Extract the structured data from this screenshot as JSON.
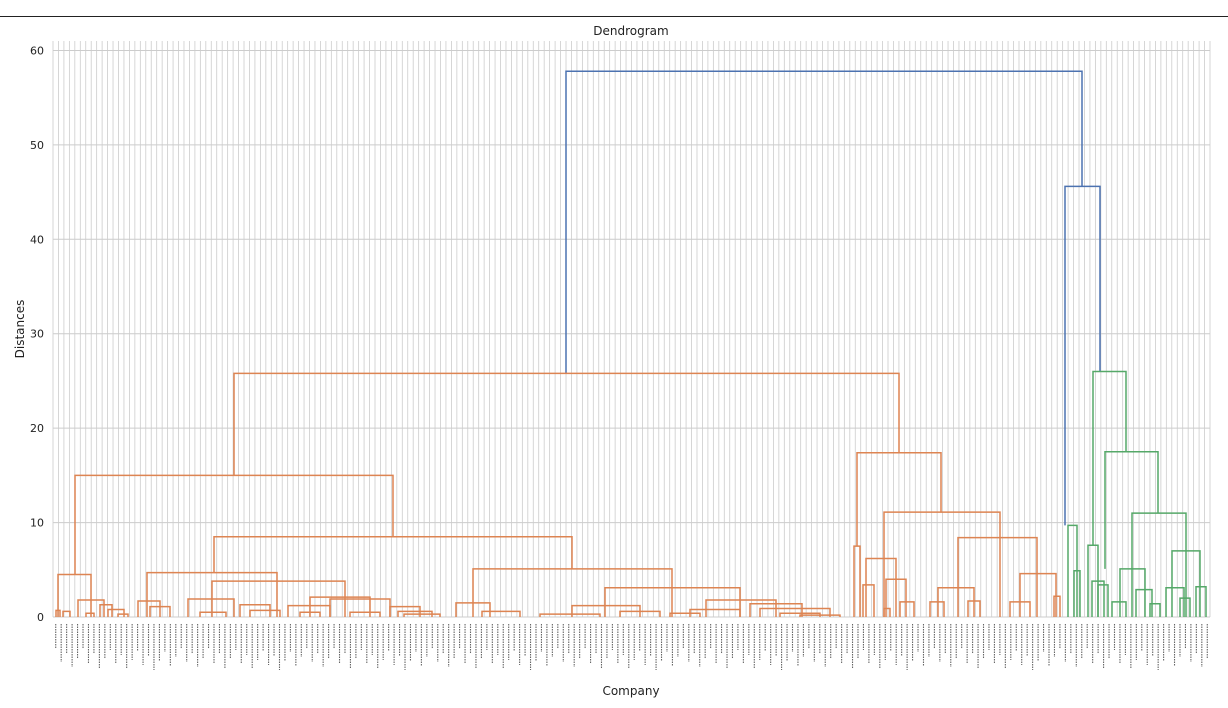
{
  "chart_data": {
    "type": "dendrogram",
    "title": "Dendrogram",
    "xlabel": "Company",
    "ylabel": "Distances",
    "ylim": [
      0,
      61
    ],
    "yticks": [
      0,
      10,
      20,
      30,
      40,
      50,
      60
    ],
    "grid": true,
    "colors": {
      "cluster_1": "#dd8452",
      "cluster_2": "#55a868",
      "above_threshold": "#4c72b0",
      "grid": "#cccccc"
    },
    "merges": [
      {
        "color": "above_threshold",
        "height": 57.8,
        "children": [
          {
            "color": "cluster_1",
            "height": 25.8,
            "children": [
              {
                "color": "cluster_1",
                "height": 15.0,
                "children": [
                  {
                    "color": "cluster_1",
                    "height": 4.5,
                    "children": []
                  },
                  {
                    "color": "cluster_1",
                    "height": 8.5,
                    "children": [
                      {
                        "color": "cluster_1",
                        "height": 4.7,
                        "children": []
                      },
                      {
                        "color": "cluster_1",
                        "height": 5.1,
                        "children": []
                      }
                    ]
                  }
                ]
              },
              {
                "color": "cluster_1",
                "height": 17.4,
                "children": [
                  {
                    "color": "cluster_1",
                    "height": 7.5,
                    "children": []
                  },
                  {
                    "color": "cluster_1",
                    "height": 11.1,
                    "children": []
                  }
                ]
              }
            ]
          },
          {
            "color": "above_threshold",
            "height": 45.6,
            "children": [
              {
                "color": "cluster_2",
                "height": 9.7,
                "children": []
              },
              {
                "color": "cluster_2",
                "height": 26.0,
                "children": [
                  {
                    "color": "cluster_2",
                    "height": 7.6,
                    "children": []
                  },
                  {
                    "color": "cluster_2",
                    "height": 17.5,
                    "children": [
                      {
                        "color": "cluster_2",
                        "height": 5.1,
                        "children": []
                      },
                      {
                        "color": "cluster_2",
                        "height": 11.0,
                        "children": []
                      }
                    ]
                  }
                ]
              }
            ]
          }
        ]
      }
    ]
  }
}
